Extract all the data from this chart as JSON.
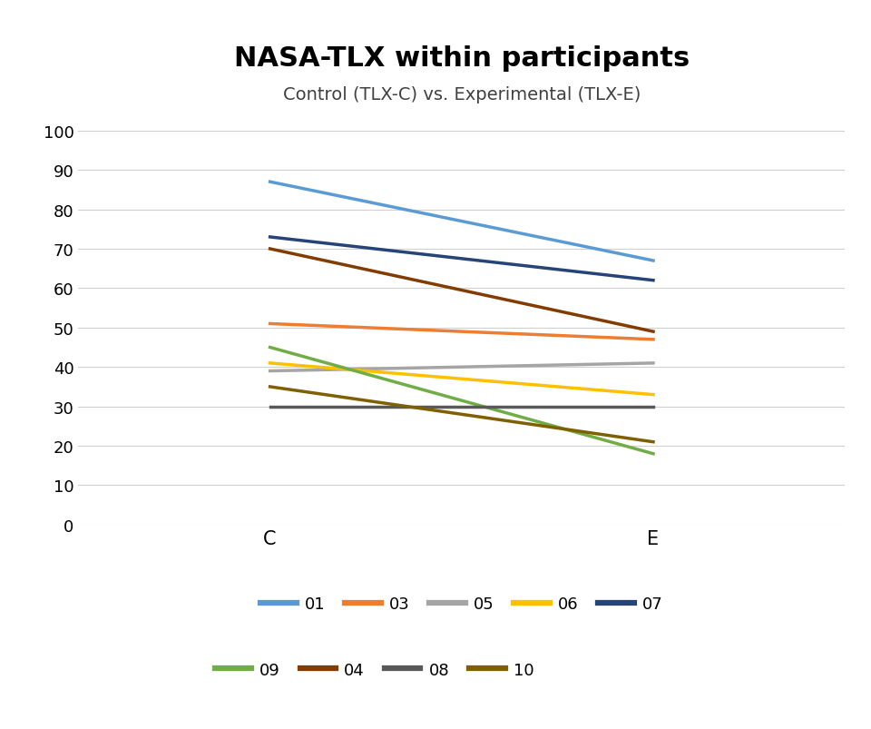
{
  "title": "NASA-TLX within participants",
  "subtitle": "Control (TLX-C) vs. Experimental (TLX-E)",
  "x_labels": [
    "C",
    "E"
  ],
  "x_positions": [
    0,
    1
  ],
  "ylim": [
    0,
    100
  ],
  "yticks": [
    0,
    10,
    20,
    30,
    40,
    50,
    60,
    70,
    80,
    90,
    100
  ],
  "series": [
    {
      "label": "01",
      "color": "#5B9BD5",
      "C": 87,
      "E": 67
    },
    {
      "label": "03",
      "color": "#ED7D31",
      "C": 51,
      "E": 47
    },
    {
      "label": "05",
      "color": "#A5A5A5",
      "C": 39,
      "E": 41
    },
    {
      "label": "06",
      "color": "#FFC000",
      "C": 41,
      "E": 33
    },
    {
      "label": "07",
      "color": "#264478",
      "C": 73,
      "E": 62
    },
    {
      "label": "09",
      "color": "#70AD47",
      "C": 45,
      "E": 18
    },
    {
      "label": "04",
      "color": "#833C00",
      "C": 70,
      "E": 49
    },
    {
      "label": "08",
      "color": "#595959",
      "C": 30,
      "E": 30
    },
    {
      "label": "10",
      "color": "#7F6000",
      "C": 35,
      "E": 21
    }
  ],
  "legend_row1": [
    "01",
    "03",
    "05",
    "06",
    "07"
  ],
  "legend_row2": [
    "09",
    "04",
    "08",
    "10"
  ],
  "title_fontsize": 22,
  "subtitle_fontsize": 14,
  "tick_fontsize": 13,
  "xtick_fontsize": 15,
  "legend_fontsize": 13,
  "line_width": 2.5,
  "background_color": "#ffffff",
  "grid_color": "#d0d0d0"
}
